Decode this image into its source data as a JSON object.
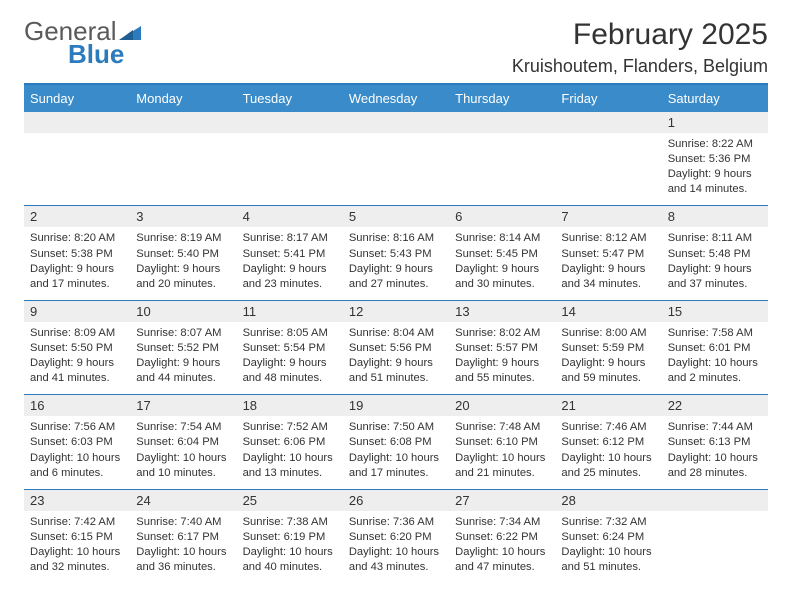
{
  "logo": {
    "text_main": "General",
    "text_sub": "Blue",
    "main_color": "#5a5a5a",
    "sub_color": "#2b7bbd",
    "triangle_color": "#2b7bbd"
  },
  "header": {
    "month_title": "February 2025",
    "location": "Kruishoutem, Flanders, Belgium"
  },
  "style": {
    "header_bar_color": "#3a8bc9",
    "header_text_color": "#ffffff",
    "top_border_color": "#2b7bbd",
    "week_divider_color": "#2b7bbd",
    "daynum_bg": "#eeeeee",
    "body_text_color": "#333333",
    "page_bg": "#ffffff",
    "day_header_fontsize": 13,
    "cell_fontsize": 11.2,
    "title_fontsize": 30,
    "location_fontsize": 18
  },
  "day_headers": [
    "Sunday",
    "Monday",
    "Tuesday",
    "Wednesday",
    "Thursday",
    "Friday",
    "Saturday"
  ],
  "weeks": [
    [
      {
        "blank": true
      },
      {
        "blank": true
      },
      {
        "blank": true
      },
      {
        "blank": true
      },
      {
        "blank": true
      },
      {
        "blank": true
      },
      {
        "n": "1",
        "sunrise": "Sunrise: 8:22 AM",
        "sunset": "Sunset: 5:36 PM",
        "daylight1": "Daylight: 9 hours",
        "daylight2": "and 14 minutes."
      }
    ],
    [
      {
        "n": "2",
        "sunrise": "Sunrise: 8:20 AM",
        "sunset": "Sunset: 5:38 PM",
        "daylight1": "Daylight: 9 hours",
        "daylight2": "and 17 minutes."
      },
      {
        "n": "3",
        "sunrise": "Sunrise: 8:19 AM",
        "sunset": "Sunset: 5:40 PM",
        "daylight1": "Daylight: 9 hours",
        "daylight2": "and 20 minutes."
      },
      {
        "n": "4",
        "sunrise": "Sunrise: 8:17 AM",
        "sunset": "Sunset: 5:41 PM",
        "daylight1": "Daylight: 9 hours",
        "daylight2": "and 23 minutes."
      },
      {
        "n": "5",
        "sunrise": "Sunrise: 8:16 AM",
        "sunset": "Sunset: 5:43 PM",
        "daylight1": "Daylight: 9 hours",
        "daylight2": "and 27 minutes."
      },
      {
        "n": "6",
        "sunrise": "Sunrise: 8:14 AM",
        "sunset": "Sunset: 5:45 PM",
        "daylight1": "Daylight: 9 hours",
        "daylight2": "and 30 minutes."
      },
      {
        "n": "7",
        "sunrise": "Sunrise: 8:12 AM",
        "sunset": "Sunset: 5:47 PM",
        "daylight1": "Daylight: 9 hours",
        "daylight2": "and 34 minutes."
      },
      {
        "n": "8",
        "sunrise": "Sunrise: 8:11 AM",
        "sunset": "Sunset: 5:48 PM",
        "daylight1": "Daylight: 9 hours",
        "daylight2": "and 37 minutes."
      }
    ],
    [
      {
        "n": "9",
        "sunrise": "Sunrise: 8:09 AM",
        "sunset": "Sunset: 5:50 PM",
        "daylight1": "Daylight: 9 hours",
        "daylight2": "and 41 minutes."
      },
      {
        "n": "10",
        "sunrise": "Sunrise: 8:07 AM",
        "sunset": "Sunset: 5:52 PM",
        "daylight1": "Daylight: 9 hours",
        "daylight2": "and 44 minutes."
      },
      {
        "n": "11",
        "sunrise": "Sunrise: 8:05 AM",
        "sunset": "Sunset: 5:54 PM",
        "daylight1": "Daylight: 9 hours",
        "daylight2": "and 48 minutes."
      },
      {
        "n": "12",
        "sunrise": "Sunrise: 8:04 AM",
        "sunset": "Sunset: 5:56 PM",
        "daylight1": "Daylight: 9 hours",
        "daylight2": "and 51 minutes."
      },
      {
        "n": "13",
        "sunrise": "Sunrise: 8:02 AM",
        "sunset": "Sunset: 5:57 PM",
        "daylight1": "Daylight: 9 hours",
        "daylight2": "and 55 minutes."
      },
      {
        "n": "14",
        "sunrise": "Sunrise: 8:00 AM",
        "sunset": "Sunset: 5:59 PM",
        "daylight1": "Daylight: 9 hours",
        "daylight2": "and 59 minutes."
      },
      {
        "n": "15",
        "sunrise": "Sunrise: 7:58 AM",
        "sunset": "Sunset: 6:01 PM",
        "daylight1": "Daylight: 10 hours",
        "daylight2": "and 2 minutes."
      }
    ],
    [
      {
        "n": "16",
        "sunrise": "Sunrise: 7:56 AM",
        "sunset": "Sunset: 6:03 PM",
        "daylight1": "Daylight: 10 hours",
        "daylight2": "and 6 minutes."
      },
      {
        "n": "17",
        "sunrise": "Sunrise: 7:54 AM",
        "sunset": "Sunset: 6:04 PM",
        "daylight1": "Daylight: 10 hours",
        "daylight2": "and 10 minutes."
      },
      {
        "n": "18",
        "sunrise": "Sunrise: 7:52 AM",
        "sunset": "Sunset: 6:06 PM",
        "daylight1": "Daylight: 10 hours",
        "daylight2": "and 13 minutes."
      },
      {
        "n": "19",
        "sunrise": "Sunrise: 7:50 AM",
        "sunset": "Sunset: 6:08 PM",
        "daylight1": "Daylight: 10 hours",
        "daylight2": "and 17 minutes."
      },
      {
        "n": "20",
        "sunrise": "Sunrise: 7:48 AM",
        "sunset": "Sunset: 6:10 PM",
        "daylight1": "Daylight: 10 hours",
        "daylight2": "and 21 minutes."
      },
      {
        "n": "21",
        "sunrise": "Sunrise: 7:46 AM",
        "sunset": "Sunset: 6:12 PM",
        "daylight1": "Daylight: 10 hours",
        "daylight2": "and 25 minutes."
      },
      {
        "n": "22",
        "sunrise": "Sunrise: 7:44 AM",
        "sunset": "Sunset: 6:13 PM",
        "daylight1": "Daylight: 10 hours",
        "daylight2": "and 28 minutes."
      }
    ],
    [
      {
        "n": "23",
        "sunrise": "Sunrise: 7:42 AM",
        "sunset": "Sunset: 6:15 PM",
        "daylight1": "Daylight: 10 hours",
        "daylight2": "and 32 minutes."
      },
      {
        "n": "24",
        "sunrise": "Sunrise: 7:40 AM",
        "sunset": "Sunset: 6:17 PM",
        "daylight1": "Daylight: 10 hours",
        "daylight2": "and 36 minutes."
      },
      {
        "n": "25",
        "sunrise": "Sunrise: 7:38 AM",
        "sunset": "Sunset: 6:19 PM",
        "daylight1": "Daylight: 10 hours",
        "daylight2": "and 40 minutes."
      },
      {
        "n": "26",
        "sunrise": "Sunrise: 7:36 AM",
        "sunset": "Sunset: 6:20 PM",
        "daylight1": "Daylight: 10 hours",
        "daylight2": "and 43 minutes."
      },
      {
        "n": "27",
        "sunrise": "Sunrise: 7:34 AM",
        "sunset": "Sunset: 6:22 PM",
        "daylight1": "Daylight: 10 hours",
        "daylight2": "and 47 minutes."
      },
      {
        "n": "28",
        "sunrise": "Sunrise: 7:32 AM",
        "sunset": "Sunset: 6:24 PM",
        "daylight1": "Daylight: 10 hours",
        "daylight2": "and 51 minutes."
      },
      {
        "blank": true
      }
    ]
  ]
}
